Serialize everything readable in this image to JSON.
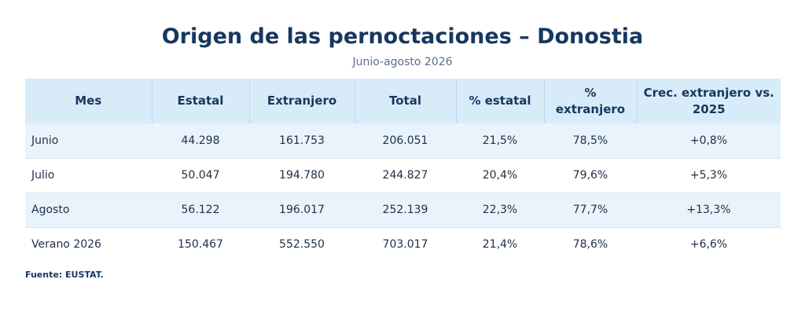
{
  "title": "Origen de las pernoctaciones – Donostia",
  "subtitle": "Junio-agosto 2026",
  "source": "Fuente: EUSTAT.",
  "colors": {
    "accent": "#17375e",
    "header_bg": "#d8ebf8",
    "row_alt_bg": "#e8f3fb"
  },
  "chart_data": {
    "type": "table",
    "title": "Origen de las pernoctaciones – Donostia",
    "subtitle": "Junio-agosto 2026",
    "columns": [
      "Mes",
      "Estatal",
      "Extranjero",
      "Total",
      "% estatal",
      "% extranjero",
      "Crec. extranjero vs. 2025"
    ],
    "rows": [
      [
        "Junio",
        "44.298",
        "161.753",
        "206.051",
        "21,5%",
        "78,5%",
        "+0,8%"
      ],
      [
        "Julio",
        "50.047",
        "194.780",
        "244.827",
        "20,4%",
        "79,6%",
        "+5,3%"
      ],
      [
        "Agosto",
        "56.122",
        "196.017",
        "252.139",
        "22,3%",
        "77,7%",
        "+13,3%"
      ],
      [
        "Verano 2026",
        "150.467",
        "552.550",
        "703.017",
        "21,4%",
        "78,6%",
        "+6,6%"
      ]
    ]
  }
}
